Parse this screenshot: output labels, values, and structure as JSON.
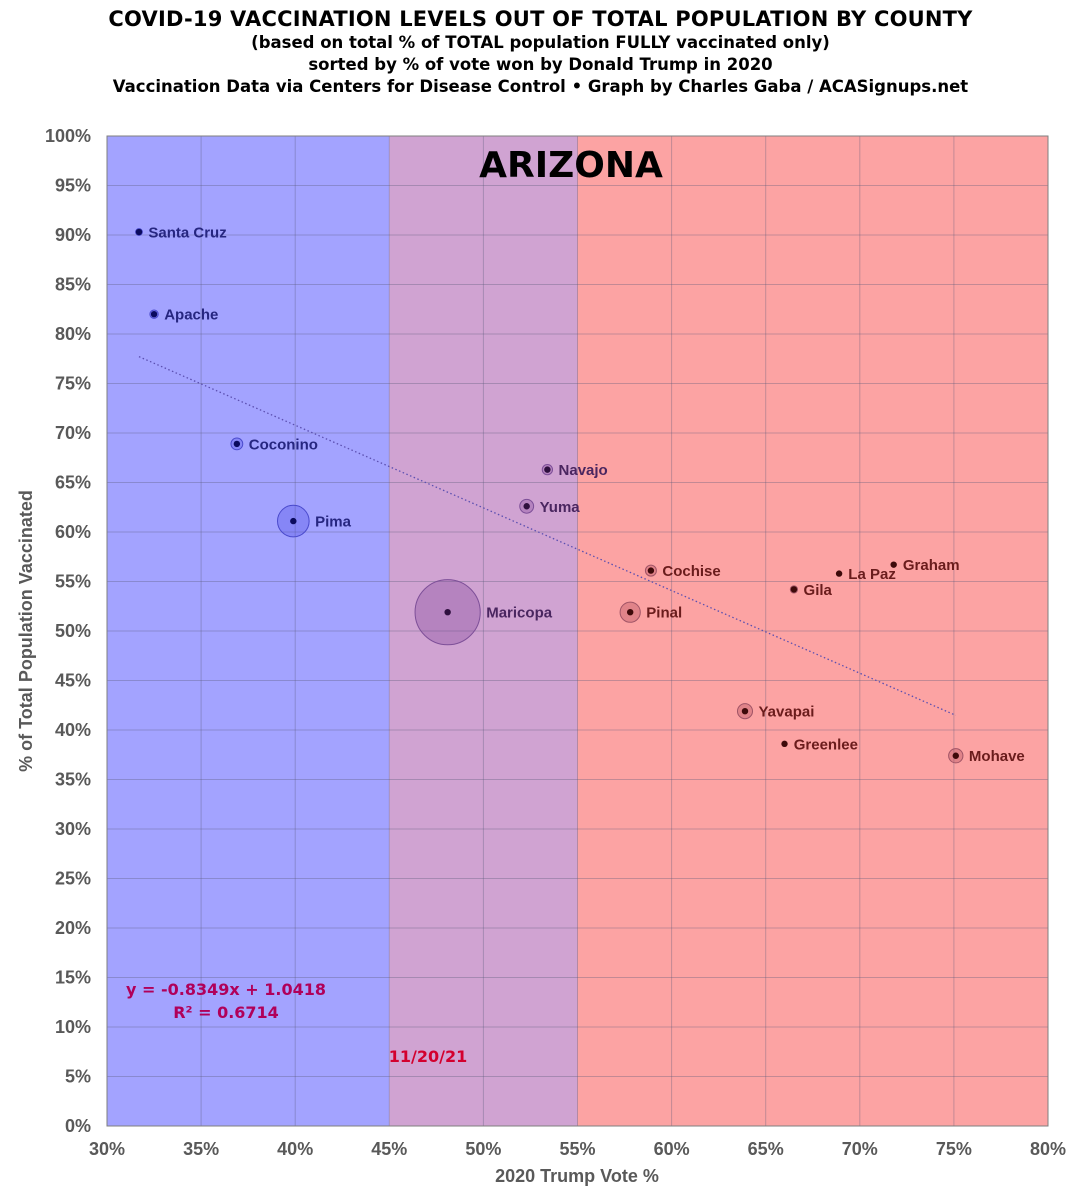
{
  "header": {
    "title": "COVID-19 VACCINATION LEVELS OUT OF TOTAL POPULATION BY COUNTY",
    "subtitle1": "(based on total % of TOTAL population FULLY vaccinated only)",
    "subtitle2": "sorted by % of vote won by Donald Trump in 2020",
    "subtitle3": "Vaccination Data via Centers for Disease Control • Graph by Charles Gaba / ACASignups.net"
  },
  "chart_data": {
    "type": "scatter",
    "title": "ARIZONA",
    "xlabel": "2020 Trump Vote %",
    "ylabel": "% of Total Population Vaccinated",
    "xlim": [
      30,
      80
    ],
    "ylim": [
      0,
      100
    ],
    "x_ticks": [
      "30%",
      "35%",
      "40%",
      "45%",
      "50%",
      "55%",
      "60%",
      "65%",
      "70%",
      "75%",
      "80%"
    ],
    "y_ticks": [
      "0%",
      "5%",
      "10%",
      "15%",
      "20%",
      "25%",
      "30%",
      "35%",
      "40%",
      "45%",
      "50%",
      "55%",
      "60%",
      "65%",
      "70%",
      "75%",
      "80%",
      "85%",
      "90%",
      "95%",
      "100%"
    ],
    "grid": true,
    "background_bands": [
      {
        "from": 30,
        "to": 45,
        "color": "#a3a3ff"
      },
      {
        "from": 45,
        "to": 55,
        "color": "#d0a3d2"
      },
      {
        "from": 55,
        "to": 80,
        "color": "#fca3a3"
      }
    ],
    "points": [
      {
        "name": "Santa Cruz",
        "x": 31.7,
        "y": 90.3,
        "pop": 0.047
      },
      {
        "name": "Apache",
        "x": 32.5,
        "y": 82.0,
        "pop": 0.072
      },
      {
        "name": "Coconino",
        "x": 36.9,
        "y": 68.9,
        "pop": 0.145
      },
      {
        "name": "Pima",
        "x": 39.9,
        "y": 61.1,
        "pop": 1.04
      },
      {
        "name": "Maricopa",
        "x": 48.1,
        "y": 51.9,
        "pop": 4.42
      },
      {
        "name": "Navajo",
        "x": 53.4,
        "y": 66.3,
        "pop": 0.11
      },
      {
        "name": "Yuma",
        "x": 52.3,
        "y": 62.6,
        "pop": 0.2
      },
      {
        "name": "Cochise",
        "x": 58.9,
        "y": 56.1,
        "pop": 0.126
      },
      {
        "name": "Pinal",
        "x": 57.8,
        "y": 51.9,
        "pop": 0.425
      },
      {
        "name": "Gila",
        "x": 66.5,
        "y": 54.2,
        "pop": 0.054
      },
      {
        "name": "La Paz",
        "x": 68.9,
        "y": 55.8,
        "pop": 0.021
      },
      {
        "name": "Graham",
        "x": 71.8,
        "y": 56.7,
        "pop": 0.038
      },
      {
        "name": "Yavapai",
        "x": 63.9,
        "y": 41.9,
        "pop": 0.235
      },
      {
        "name": "Greenlee",
        "x": 66.0,
        "y": 38.6,
        "pop": 0.009
      },
      {
        "name": "Mohave",
        "x": 75.1,
        "y": 37.4,
        "pop": 0.213
      }
    ],
    "trendline": {
      "slope": -0.8349,
      "intercept": 1.0418,
      "x_from": 31.7,
      "x_to": 75.1
    },
    "equation_line1": "y = -0.8349x + 1.0418",
    "equation_line2": "R² = 0.6714",
    "date_label": "11/20/21"
  }
}
